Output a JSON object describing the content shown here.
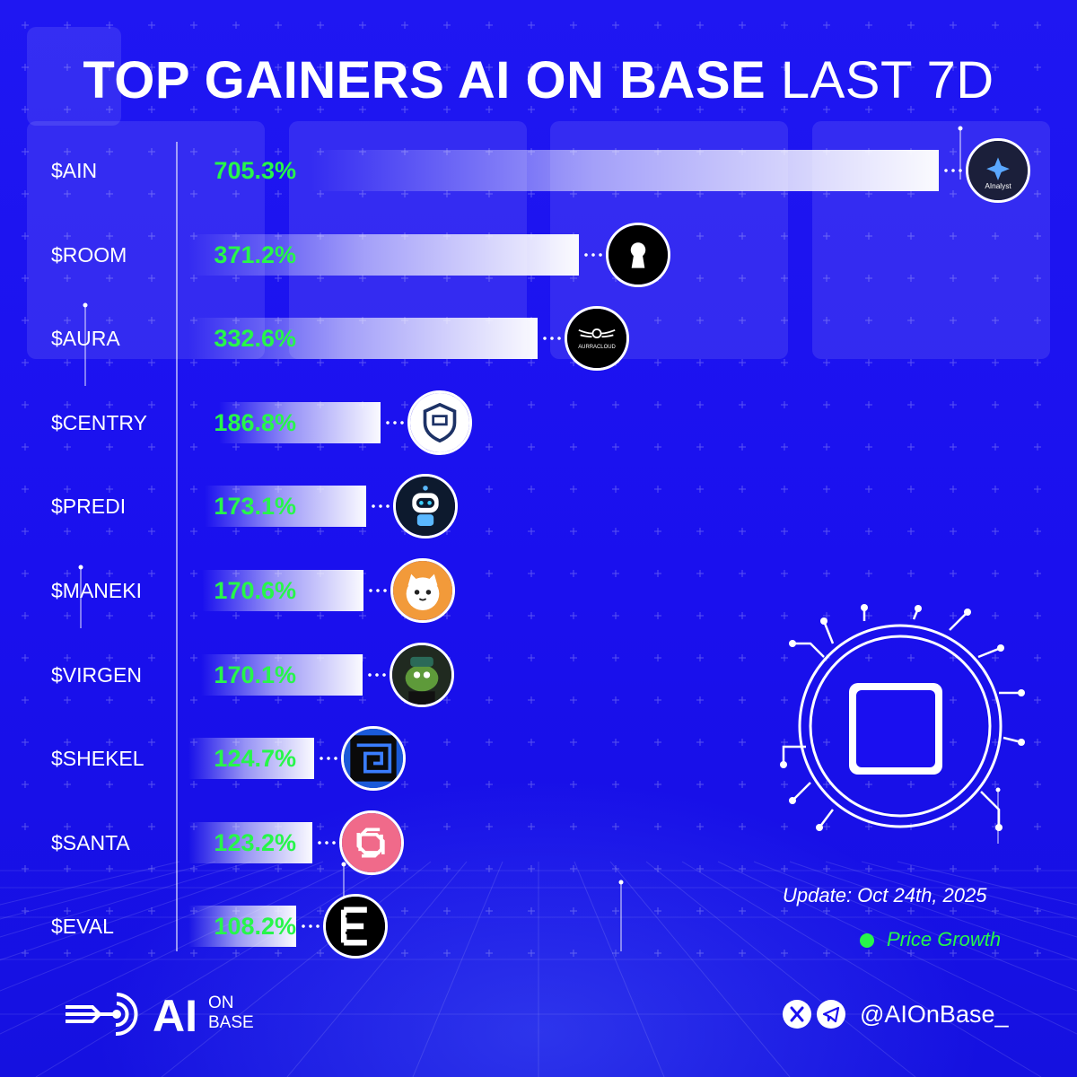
{
  "title": {
    "bold": "TOP GAINERS AI ON BASE",
    "light": "LAST 7D"
  },
  "chart_data": {
    "type": "bar",
    "orientation": "horizontal",
    "categories": [
      "$AIN",
      "$ROOM",
      "$AURA",
      "$CENTRY",
      "$PREDI",
      "$MANEKI",
      "$VIRGEN",
      "$SHEKEL",
      "$SANTA",
      "$EVAL"
    ],
    "values": [
      705.3,
      371.2,
      332.6,
      186.8,
      173.1,
      170.6,
      170.1,
      124.7,
      123.2,
      108.2
    ],
    "value_labels": [
      "705.3%",
      "371.2%",
      "332.6%",
      "186.8%",
      "173.1%",
      "170.6%",
      "170.1%",
      "124.7%",
      "123.2%",
      "108.2%"
    ],
    "unit": "%",
    "series": [
      {
        "name": "Price Growth",
        "color": "#27f64a"
      }
    ],
    "legend": "bottom-right",
    "grid": false
  },
  "token_logos": [
    {
      "ticker": "$AIN",
      "icon": "ainalyst-logo",
      "text": "AInalyst"
    },
    {
      "ticker": "$ROOM",
      "icon": "keyhole-logo"
    },
    {
      "ticker": "$AURA",
      "icon": "aurracloud-logo",
      "text": "AURRACLOUD"
    },
    {
      "ticker": "$CENTRY",
      "icon": "shield-logo"
    },
    {
      "ticker": "$PREDI",
      "icon": "robot-logo"
    },
    {
      "ticker": "$MANEKI",
      "icon": "cat-logo"
    },
    {
      "ticker": "$VIRGEN",
      "icon": "frog-logo"
    },
    {
      "ticker": "$SHEKEL",
      "icon": "maze-logo"
    },
    {
      "ticker": "$SANTA",
      "icon": "knot-logo"
    },
    {
      "ticker": "$EVAL",
      "icon": "letter-e-logo"
    }
  ],
  "update_text": "Update: Oct 24th, 2025",
  "legend_label": "Price Growth",
  "brand": {
    "ai": "AI",
    "on": "ON",
    "base": "BASE"
  },
  "social_handle": "@AIOnBase_",
  "colors": {
    "background": "#1a0ff0",
    "accent": "#27f64a",
    "text": "#ffffff"
  }
}
